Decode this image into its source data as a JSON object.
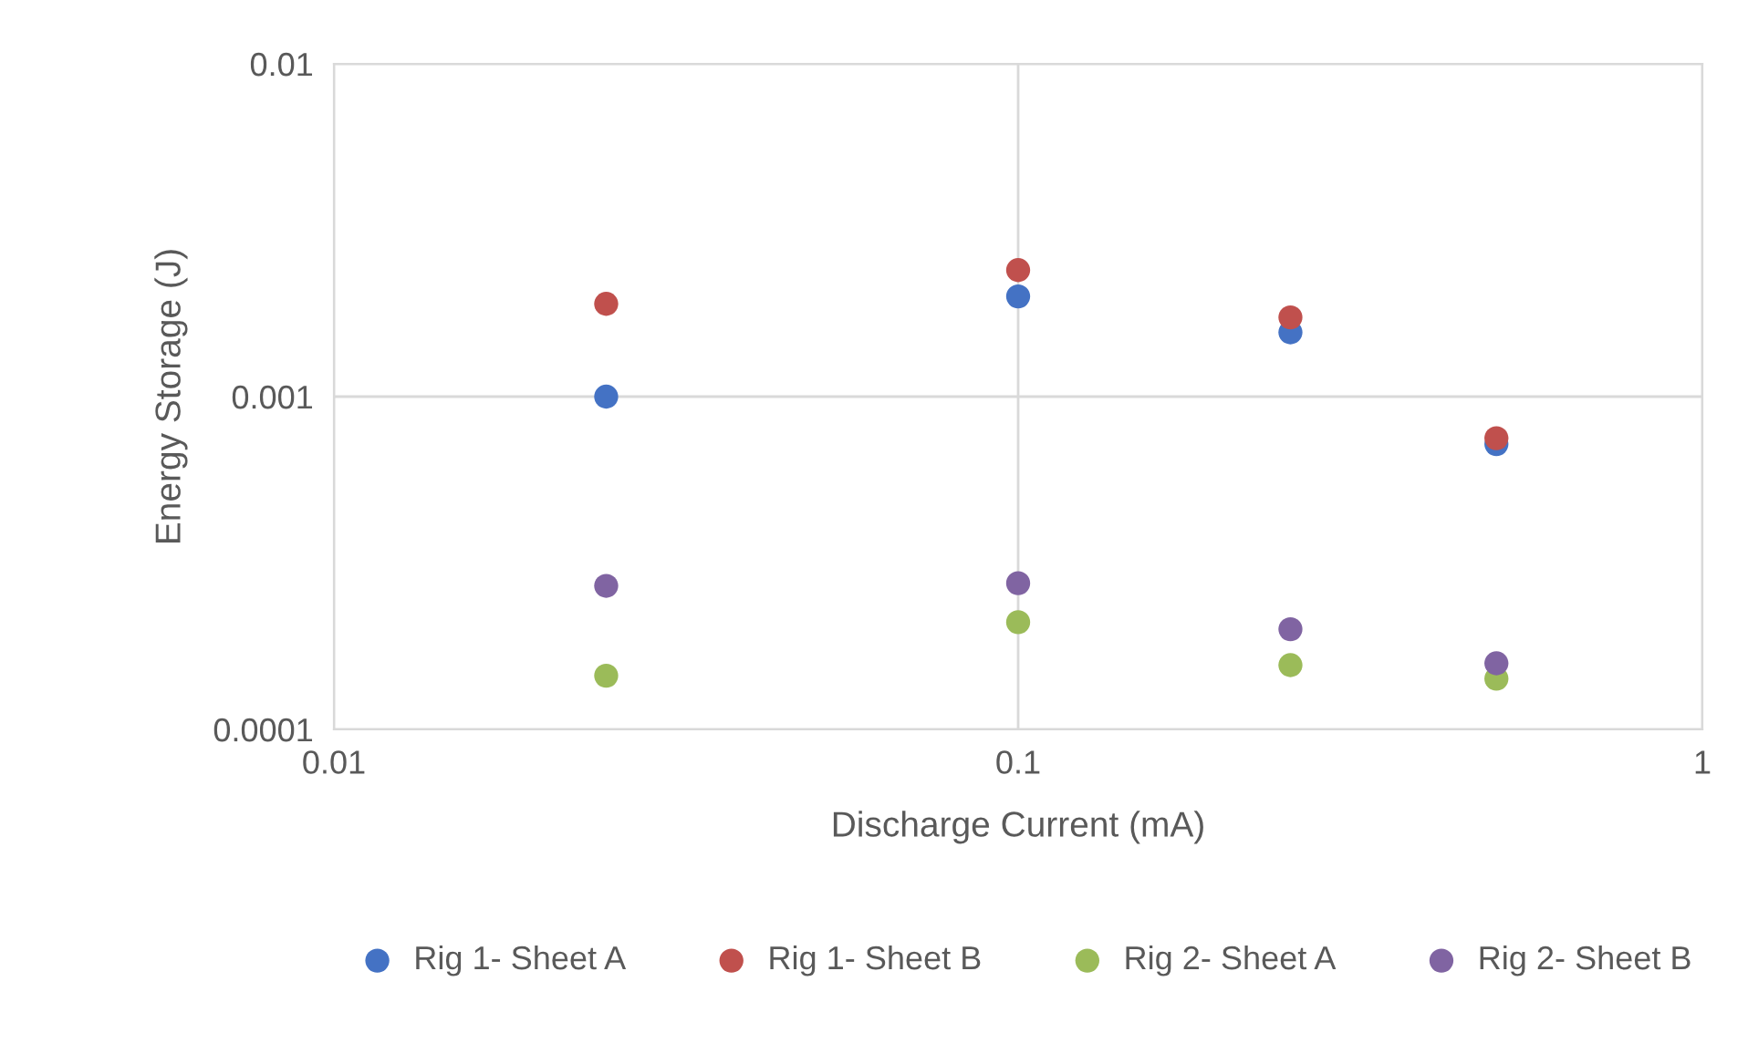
{
  "chart_data": {
    "type": "scatter",
    "xlabel": "Discharge Current (mA)",
    "ylabel": "Energy Storage (J)",
    "x": [
      0.025,
      0.1,
      0.25,
      0.5
    ],
    "series": [
      {
        "name": "Rig 1- Sheet A",
        "color": "#4472c4",
        "values": [
          0.001,
          0.002,
          0.00156,
          0.00072
        ]
      },
      {
        "name": "Rig 1- Sheet B",
        "color": "#c0504d",
        "values": [
          0.0019,
          0.0024,
          0.00173,
          0.00075
        ]
      },
      {
        "name": "Rig 2- Sheet A",
        "color": "#9bbb59",
        "values": [
          0.000145,
          0.00021,
          0.000156,
          0.000142
        ]
      },
      {
        "name": "Rig 2- Sheet B",
        "color": "#8064a2",
        "values": [
          0.00027,
          0.000275,
          0.0002,
          0.000158
        ]
      }
    ],
    "log": "xy",
    "xlim": [
      0.01,
      1
    ],
    "xticks": [
      0.01,
      0.1,
      1
    ],
    "ylim": [
      0.0001,
      0.01
    ],
    "yticks": [
      0.0001,
      0.001,
      0.01
    ],
    "grid": true,
    "legend": "bottom",
    "marker": "circle"
  }
}
